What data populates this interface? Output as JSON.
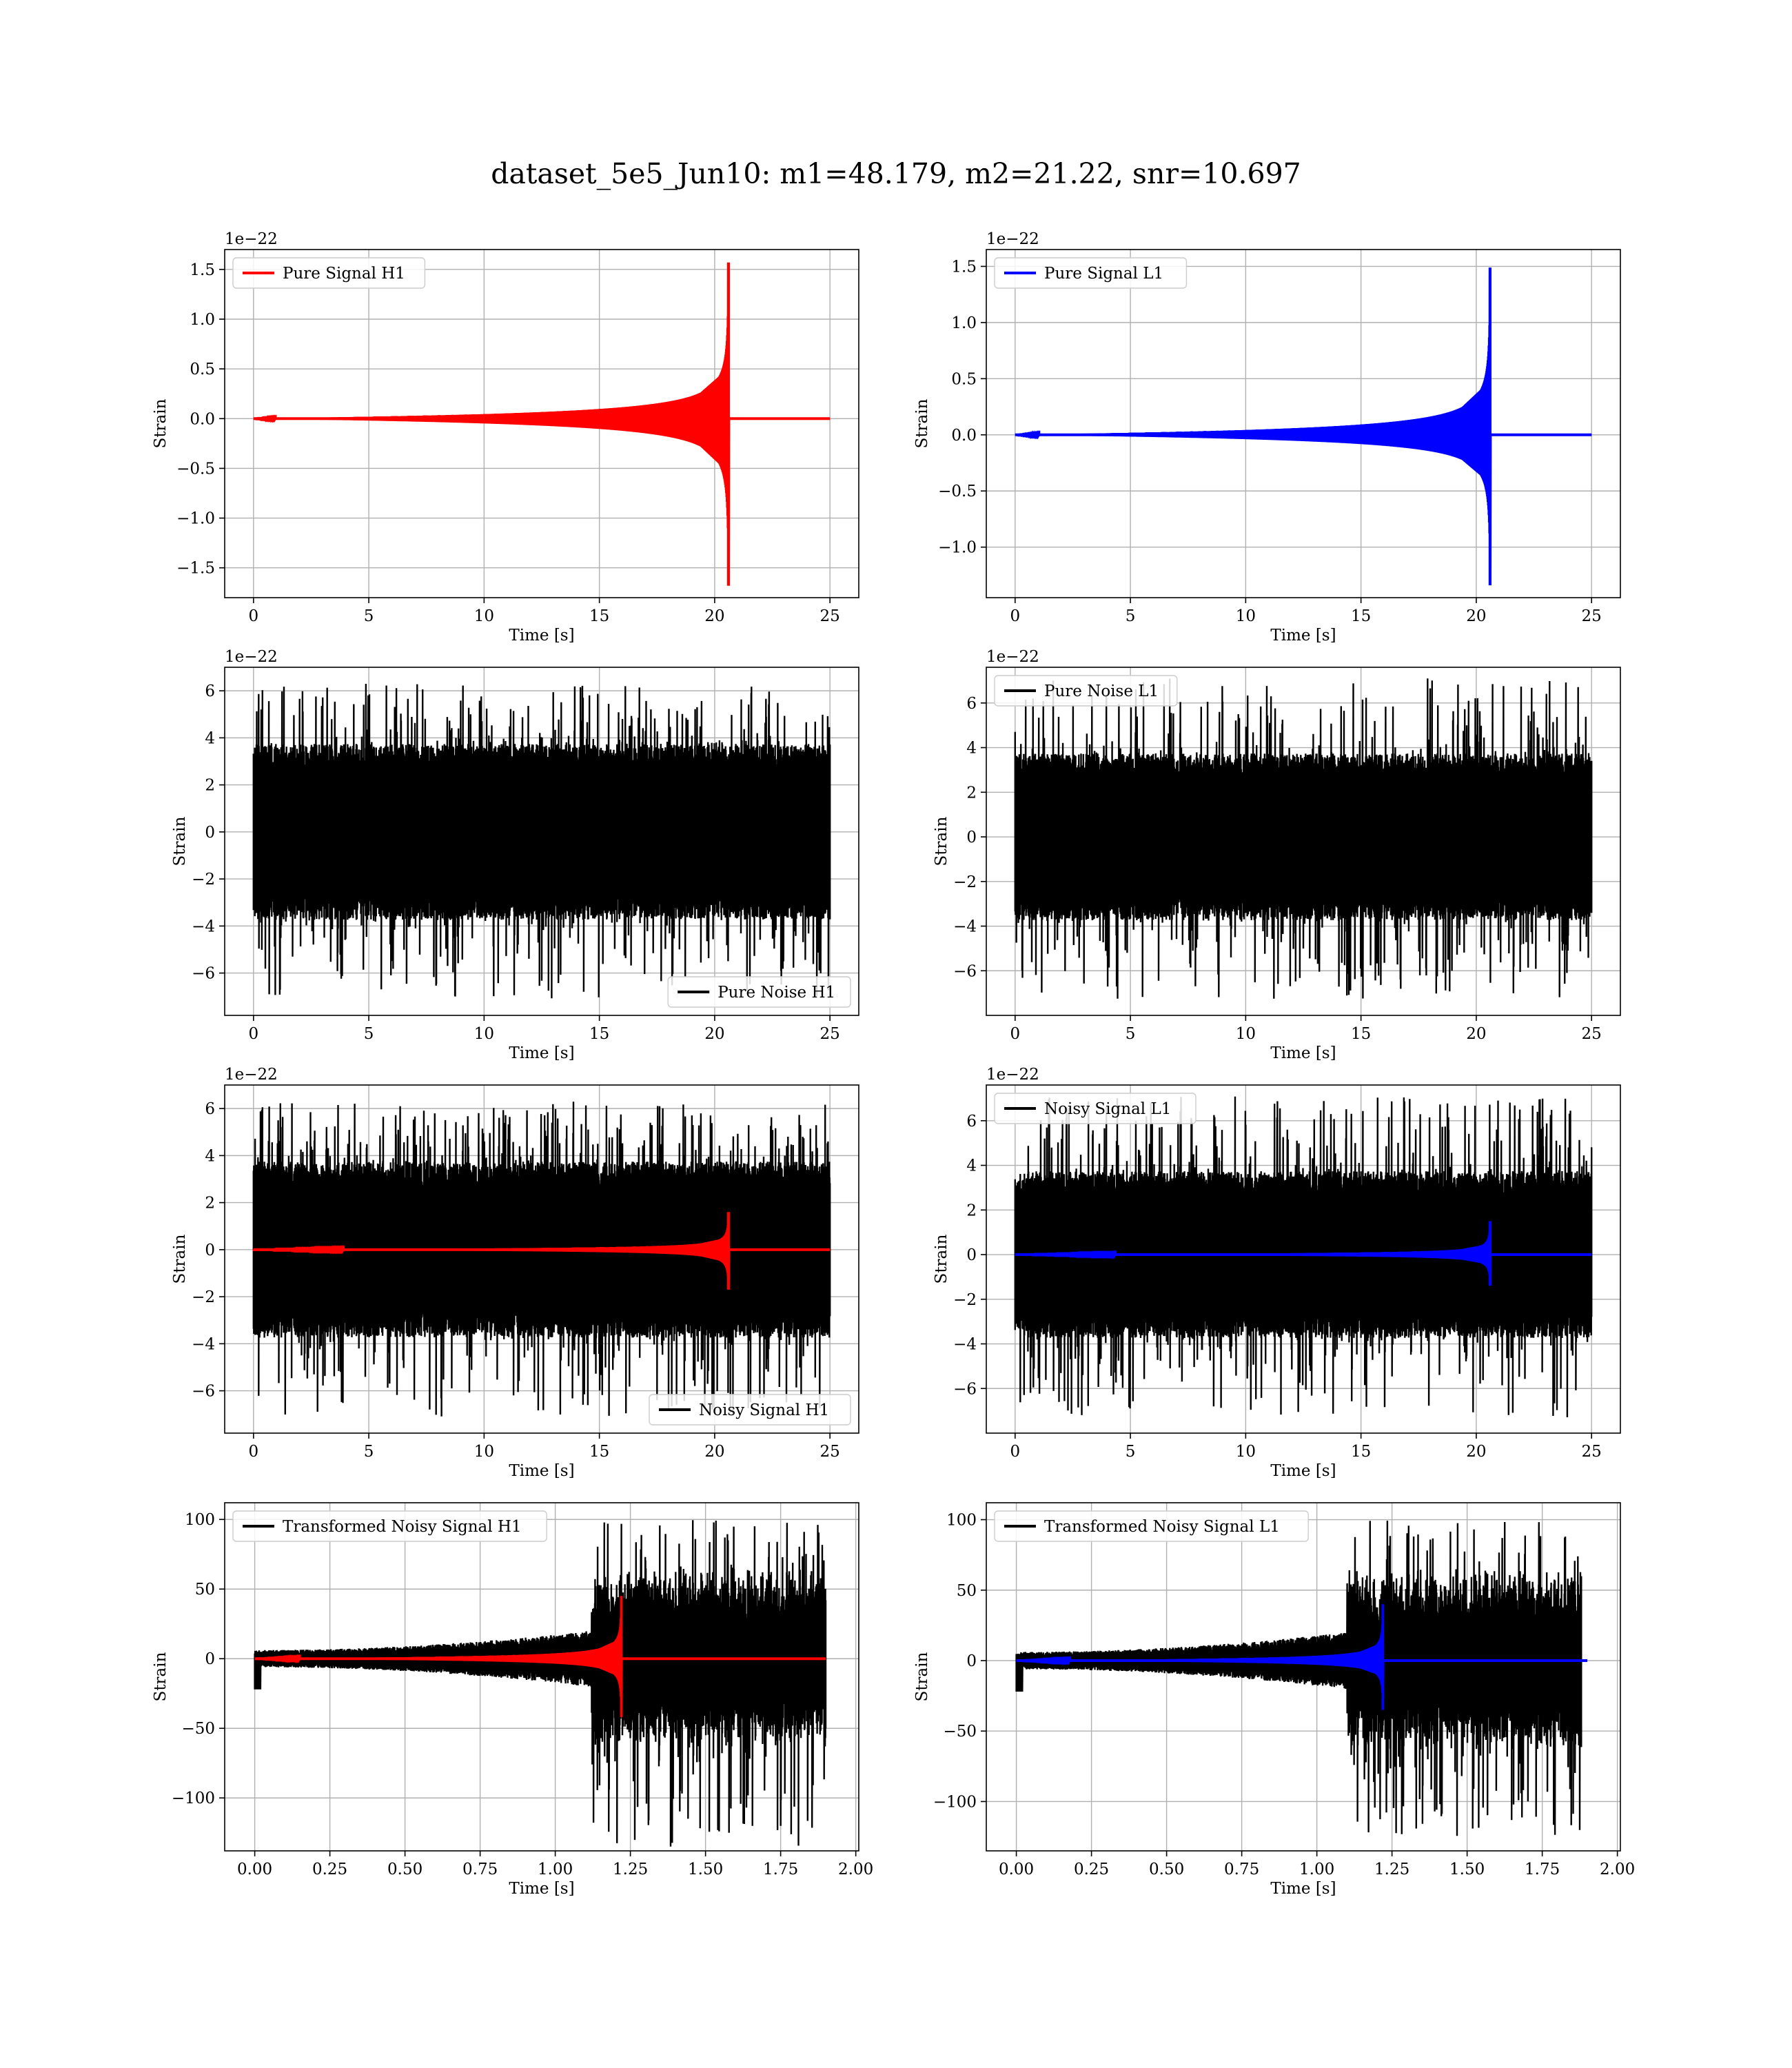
{
  "figure": {
    "suptitle": "dataset_5e5_Jun10: m1=48.179, m2=21.22, snr=10.697",
    "colors": {
      "h1_signal": "#ff0000",
      "l1_signal": "#0000ff",
      "noise": "#000000",
      "grid": "#b0b0b0"
    }
  },
  "chart_data": [
    {
      "id": "pure_signal_h1",
      "type": "line",
      "xlabel": "Time [s]",
      "ylabel": "Strain",
      "offset_text": "1e−22",
      "xlim": [
        -1.25,
        26.25
      ],
      "ylim": [
        -1.8,
        1.7
      ],
      "xticks": [
        0,
        5,
        10,
        15,
        20,
        25
      ],
      "xtick_labels": [
        "0",
        "5",
        "10",
        "15",
        "20",
        "25"
      ],
      "yticks": [
        -1.5,
        -1.0,
        -0.5,
        0.0,
        0.5,
        1.0,
        1.5
      ],
      "ytick_labels": [
        "−1.5",
        "−1.0",
        "−0.5",
        "0.0",
        "0.5",
        "1.0",
        "1.5"
      ],
      "grid": true,
      "legend_position": "upper left",
      "series": [
        {
          "name": "Pure Signal H1",
          "color": "#ff0000",
          "kind": "chirp",
          "x_start": 0,
          "x_merge": 20.6,
          "x_end": 25,
          "peak_max": 1.57,
          "peak_min": -1.68,
          "baseline": 0.0
        }
      ]
    },
    {
      "id": "pure_signal_l1",
      "type": "line",
      "xlabel": "Time [s]",
      "ylabel": "Strain",
      "offset_text": "1e−22",
      "xlim": [
        -1.25,
        26.25
      ],
      "ylim": [
        -1.45,
        1.65
      ],
      "xticks": [
        0,
        5,
        10,
        15,
        20,
        25
      ],
      "xtick_labels": [
        "0",
        "5",
        "10",
        "15",
        "20",
        "25"
      ],
      "yticks": [
        -1.0,
        -0.5,
        0.0,
        0.5,
        1.0,
        1.5
      ],
      "ytick_labels": [
        "−1.0",
        "−0.5",
        "0.0",
        "0.5",
        "1.0",
        "1.5"
      ],
      "grid": true,
      "legend_position": "upper left",
      "series": [
        {
          "name": "Pure Signal L1",
          "color": "#0000ff",
          "kind": "chirp",
          "x_start": 0,
          "x_merge": 20.6,
          "x_end": 25,
          "peak_max": 1.49,
          "peak_min": -1.34,
          "baseline": 0.0
        }
      ]
    },
    {
      "id": "pure_noise_h1",
      "type": "line",
      "xlabel": "Time [s]",
      "ylabel": "Strain",
      "offset_text": "1e−22",
      "xlim": [
        -1.25,
        26.25
      ],
      "ylim": [
        -7.8,
        7.0
      ],
      "xticks": [
        0,
        5,
        10,
        15,
        20,
        25
      ],
      "xtick_labels": [
        "0",
        "5",
        "10",
        "15",
        "20",
        "25"
      ],
      "yticks": [
        -6,
        -4,
        -2,
        0,
        2,
        4,
        6
      ],
      "ytick_labels": [
        "−6",
        "−4",
        "−2",
        "0",
        "2",
        "4",
        "6"
      ],
      "grid": true,
      "legend_position": "lower right",
      "series": [
        {
          "name": "Pure Noise H1",
          "color": "#000000",
          "kind": "noise",
          "x_start": 0,
          "x_end": 25,
          "max": 6.3,
          "min": -7.1,
          "band": 3.4
        }
      ]
    },
    {
      "id": "pure_noise_l1",
      "type": "line",
      "xlabel": "Time [s]",
      "ylabel": "Strain",
      "offset_text": "1e−22",
      "xlim": [
        -1.25,
        26.25
      ],
      "ylim": [
        -8.0,
        7.6
      ],
      "xticks": [
        0,
        5,
        10,
        15,
        20,
        25
      ],
      "xtick_labels": [
        "0",
        "5",
        "10",
        "15",
        "20",
        "25"
      ],
      "yticks": [
        -6,
        -4,
        -2,
        0,
        2,
        4,
        6
      ],
      "ytick_labels": [
        "−6",
        "−4",
        "−2",
        "0",
        "2",
        "4",
        "6"
      ],
      "grid": true,
      "legend_position": "upper left",
      "series": [
        {
          "name": "Pure Noise L1",
          "color": "#000000",
          "kind": "noise",
          "x_start": 0,
          "x_end": 25,
          "max": 7.1,
          "min": -7.3,
          "band": 3.4
        }
      ]
    },
    {
      "id": "noisy_signal_h1",
      "type": "line",
      "xlabel": "Time [s]",
      "ylabel": "Strain",
      "offset_text": "1e−22",
      "xlim": [
        -1.25,
        26.25
      ],
      "ylim": [
        -7.8,
        7.0
      ],
      "xticks": [
        0,
        5,
        10,
        15,
        20,
        25
      ],
      "xtick_labels": [
        "0",
        "5",
        "10",
        "15",
        "20",
        "25"
      ],
      "yticks": [
        -6,
        -4,
        -2,
        0,
        2,
        4,
        6
      ],
      "ytick_labels": [
        "−6",
        "−4",
        "−2",
        "0",
        "2",
        "4",
        "6"
      ],
      "grid": true,
      "legend_position": "lower right",
      "series": [
        {
          "name": "Noisy Signal H1",
          "color": "#000000",
          "kind": "noise",
          "x_start": 0,
          "x_end": 25,
          "max": 6.3,
          "min": -7.1,
          "band": 3.4
        },
        {
          "color": "#ff0000",
          "kind": "chirp",
          "x_start": 0,
          "x_merge": 20.6,
          "x_end": 25,
          "peak_max": 1.6,
          "peak_min": -1.7,
          "baseline": 0.0
        }
      ]
    },
    {
      "id": "noisy_signal_l1",
      "type": "line",
      "xlabel": "Time [s]",
      "ylabel": "Strain",
      "offset_text": "1e−22",
      "xlim": [
        -1.25,
        26.25
      ],
      "ylim": [
        -8.0,
        7.6
      ],
      "xticks": [
        0,
        5,
        10,
        15,
        20,
        25
      ],
      "xtick_labels": [
        "0",
        "5",
        "10",
        "15",
        "20",
        "25"
      ],
      "yticks": [
        -6,
        -4,
        -2,
        0,
        2,
        4,
        6
      ],
      "ytick_labels": [
        "−6",
        "−4",
        "−2",
        "0",
        "2",
        "4",
        "6"
      ],
      "grid": true,
      "legend_position": "upper left",
      "series": [
        {
          "name": "Noisy Signal L1",
          "color": "#000000",
          "kind": "noise",
          "x_start": 0,
          "x_end": 25,
          "max": 7.1,
          "min": -7.3,
          "band": 3.4
        },
        {
          "color": "#0000ff",
          "kind": "chirp",
          "x_start": 0,
          "x_merge": 20.6,
          "x_end": 25,
          "peak_max": 1.5,
          "peak_min": -1.4,
          "baseline": 0.0
        }
      ]
    },
    {
      "id": "transformed_h1",
      "type": "line",
      "xlabel": "Time [s]",
      "ylabel": "Strain",
      "offset_text": "",
      "xlim": [
        -0.1,
        2.01
      ],
      "ylim": [
        -138,
        112
      ],
      "xticks": [
        0,
        0.25,
        0.5,
        0.75,
        1.0,
        1.25,
        1.5,
        1.75,
        2.0
      ],
      "xtick_labels": [
        "0.00",
        "0.25",
        "0.50",
        "0.75",
        "1.00",
        "1.25",
        "1.50",
        "1.75",
        "2.00"
      ],
      "yticks": [
        -100,
        -50,
        0,
        50,
        100
      ],
      "ytick_labels": [
        "−100",
        "−50",
        "0",
        "50",
        "100"
      ],
      "grid": true,
      "legend_position": "upper left",
      "series": [
        {
          "name": "Transformed Noisy Signal H1",
          "color": "#000000",
          "kind": "transformed_noise",
          "x_start": 0,
          "x_rise": 1.12,
          "x_end": 1.9,
          "max": 100,
          "min": -135,
          "early_band": 8,
          "late_band": 50
        },
        {
          "color": "#ff0000",
          "kind": "chirp",
          "x_start": 0,
          "x_merge": 1.22,
          "x_end": 1.9,
          "peak_max": 45,
          "peak_min": -42,
          "baseline": 0.0
        }
      ]
    },
    {
      "id": "transformed_l1",
      "type": "line",
      "xlabel": "Time [s]",
      "ylabel": "Strain",
      "offset_text": "",
      "xlim": [
        -0.1,
        2.01
      ],
      "ylim": [
        -135,
        112
      ],
      "xticks": [
        0,
        0.25,
        0.5,
        0.75,
        1.0,
        1.25,
        1.5,
        1.75,
        2.0
      ],
      "xtick_labels": [
        "0.00",
        "0.25",
        "0.50",
        "0.75",
        "1.00",
        "1.25",
        "1.50",
        "1.75",
        "2.00"
      ],
      "yticks": [
        -100,
        -50,
        0,
        50,
        100
      ],
      "ytick_labels": [
        "−100",
        "−50",
        "0",
        "50",
        "100"
      ],
      "grid": true,
      "legend_position": "upper left",
      "series": [
        {
          "name": "Transformed Noisy Signal L1",
          "color": "#000000",
          "kind": "transformed_noise",
          "x_start": 0,
          "x_rise": 1.1,
          "x_end": 1.88,
          "max": 100,
          "min": -125,
          "early_band": 8,
          "late_band": 50
        },
        {
          "color": "#0000ff",
          "kind": "chirp",
          "x_start": 0,
          "x_merge": 1.22,
          "x_end": 1.9,
          "peak_max": 40,
          "peak_min": -35,
          "baseline": 0.0
        }
      ]
    }
  ]
}
